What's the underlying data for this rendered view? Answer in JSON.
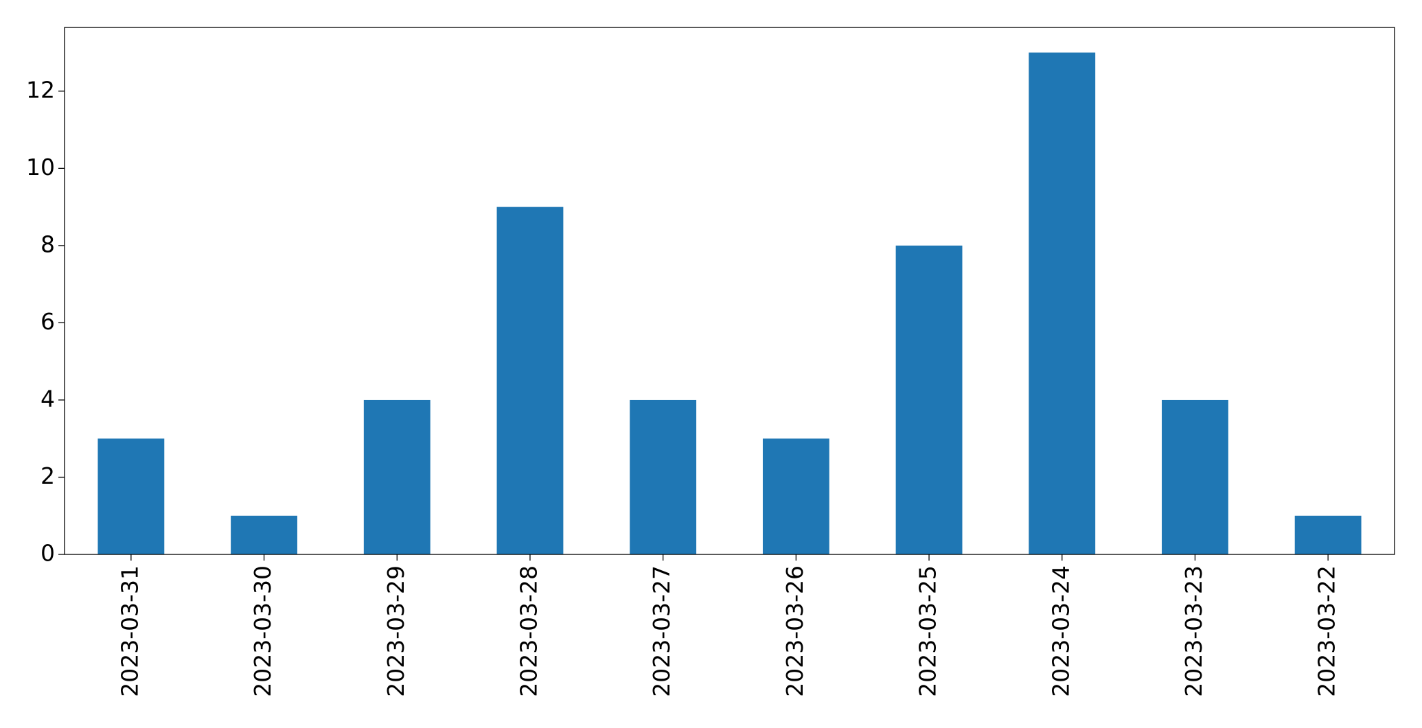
{
  "chart_data": {
    "type": "bar",
    "categories": [
      "2023-03-31",
      "2023-03-30",
      "2023-03-29",
      "2023-03-28",
      "2023-03-27",
      "2023-03-26",
      "2023-03-25",
      "2023-03-24",
      "2023-03-23",
      "2023-03-22"
    ],
    "values": [
      3,
      1,
      4,
      9,
      4,
      3,
      8,
      13,
      4,
      1
    ],
    "color": "#1f77b4",
    "ylim": [
      0,
      13.65
    ],
    "yticks": [
      0,
      2,
      4,
      6,
      8,
      10,
      12
    ],
    "grid": false
  }
}
